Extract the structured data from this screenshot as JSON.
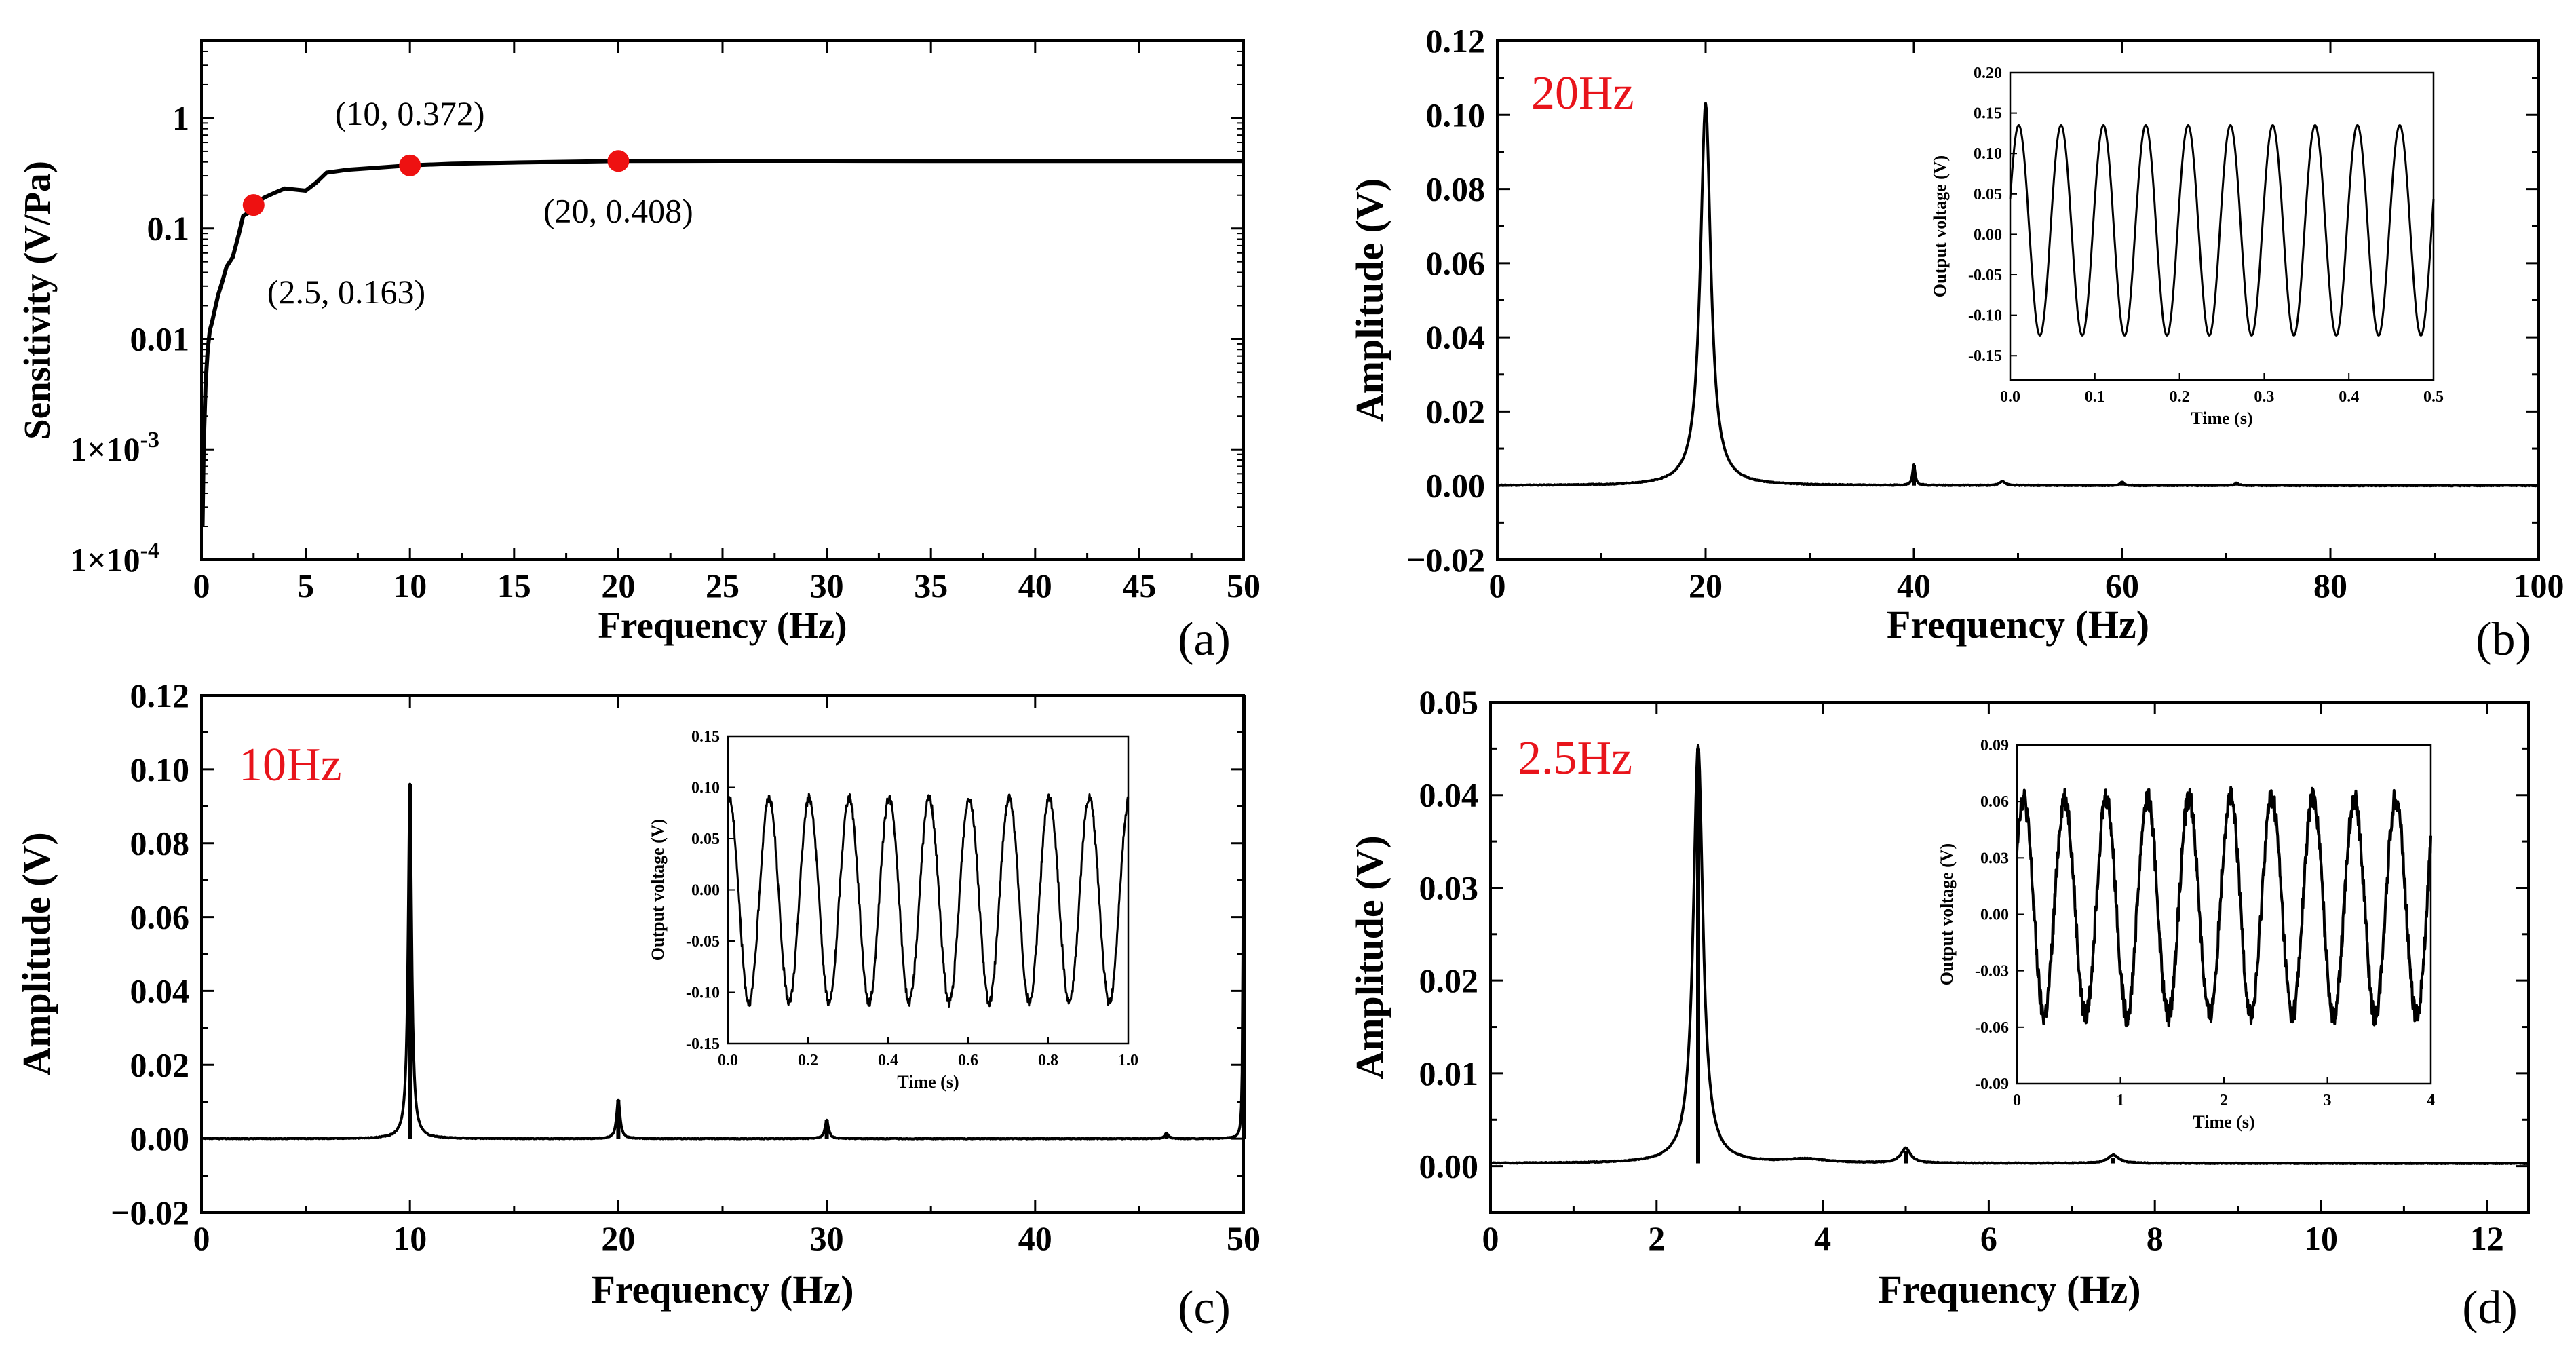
{
  "colors": {
    "line": "#000000",
    "highlight": "#e8141b",
    "marker": "#ee1111"
  },
  "chart_data": [
    {
      "id": "a",
      "type": "line",
      "panel_label": "(a)",
      "xlabel": "Frequency (Hz)",
      "ylabel": "Sensitivity (V/Pa)",
      "xlim": [
        0,
        50
      ],
      "ylim_log10": [
        -4,
        0.7
      ],
      "yscale": "log",
      "xticks": [
        0,
        5,
        10,
        15,
        20,
        25,
        30,
        35,
        40,
        45,
        50
      ],
      "xtick_labels": [
        "0",
        "5",
        "10",
        "15",
        "20",
        "25",
        "30",
        "35",
        "40",
        "45",
        "50"
      ],
      "yticks_log10": [
        -4,
        -3,
        -2,
        -1,
        0
      ],
      "ytick_labels": [
        "1×10",
        "1×10",
        "0.01",
        "0.1",
        "1"
      ],
      "ytick_sup": [
        "-4",
        "-3",
        "",
        "",
        ""
      ],
      "series": [
        {
          "name": "sensitivity",
          "x": [
            0.05,
            0.1,
            0.15,
            0.2,
            0.3,
            0.4,
            0.5,
            0.6,
            0.8,
            1.0,
            1.2,
            1.5,
            1.8,
            2.0,
            2.3,
            2.5,
            3.0,
            3.5,
            4.0,
            5.0,
            5.5,
            6.0,
            7.0,
            8.0,
            10.0,
            12.0,
            15.0,
            20.0,
            25.0,
            30.0,
            35.0,
            40.0,
            45.0,
            50.0
          ],
          "y": [
            0.0002,
            0.001,
            0.002,
            0.004,
            0.008,
            0.012,
            0.014,
            0.017,
            0.025,
            0.033,
            0.045,
            0.055,
            0.09,
            0.13,
            0.14,
            0.163,
            0.19,
            0.21,
            0.23,
            0.22,
            0.26,
            0.32,
            0.34,
            0.35,
            0.372,
            0.385,
            0.395,
            0.408,
            0.41,
            0.41,
            0.408,
            0.408,
            0.408,
            0.408
          ]
        }
      ],
      "markers": [
        {
          "x": 2.5,
          "y": 0.163,
          "label": "(2.5, 0.163)"
        },
        {
          "x": 10,
          "y": 0.372,
          "label": "(10, 0.372)"
        },
        {
          "x": 20,
          "y": 0.408,
          "label": "(20, 0.408)"
        }
      ]
    },
    {
      "id": "b",
      "type": "line",
      "panel_label": "(b)",
      "freq_label": "20Hz",
      "xlabel": "Frequency (Hz)",
      "ylabel": "Amplitude (V)",
      "xlim": [
        0,
        100
      ],
      "ylim": [
        -0.02,
        0.12
      ],
      "xticks": [
        0,
        20,
        40,
        60,
        80,
        100
      ],
      "xtick_labels": [
        "0",
        "20",
        "40",
        "60",
        "80",
        "100"
      ],
      "yticks": [
        -0.02,
        0.0,
        0.02,
        0.04,
        0.06,
        0.08,
        0.1,
        0.12
      ],
      "ytick_labels": [
        "−0.02",
        "0.00",
        "0.02",
        "0.04",
        "0.06",
        "0.08",
        "0.10",
        "0.12"
      ],
      "baseline": 0.0,
      "peaks": [
        {
          "x": 20,
          "y": 0.103,
          "width": 0.6
        },
        {
          "x": 40,
          "y": 0.0055,
          "width": 0.15
        },
        {
          "x": 48.5,
          "y": 0.0012,
          "width": 0.3
        },
        {
          "x": 60,
          "y": 0.001,
          "width": 0.2
        },
        {
          "x": 71,
          "y": 0.0008,
          "width": 0.2
        }
      ],
      "inset": {
        "xlabel": "Time (s)",
        "ylabel": "Output voltage (V)",
        "xlim": [
          0,
          0.5
        ],
        "ylim": [
          -0.18,
          0.2
        ],
        "xticks": [
          0,
          0.1,
          0.2,
          0.3,
          0.4,
          0.5
        ],
        "xtick_labels": [
          "0.0",
          "0.1",
          "0.2",
          "0.3",
          "0.4",
          "0.5"
        ],
        "yticks": [
          -0.15,
          -0.1,
          -0.05,
          0.0,
          0.05,
          0.1,
          0.15,
          0.2
        ],
        "ytick_labels": [
          "-0.15",
          "-0.10",
          "-0.05",
          "0.00",
          "0.05",
          "0.10",
          "0.15",
          "0.20"
        ],
        "frequency": 20,
        "amplitude": 0.13,
        "offset": 0.005,
        "phase": 0.3,
        "noise": 0.0
      }
    },
    {
      "id": "c",
      "type": "line",
      "panel_label": "(c)",
      "freq_label": "10Hz",
      "xlabel": "Frequency (Hz)",
      "ylabel": "Amplitude (V)",
      "xlim": [
        0,
        50
      ],
      "ylim": [
        -0.02,
        0.12
      ],
      "xticks": [
        0,
        10,
        20,
        30,
        40,
        50
      ],
      "xtick_labels": [
        "0",
        "10",
        "20",
        "30",
        "40",
        "50"
      ],
      "yticks": [
        -0.02,
        0.0,
        0.02,
        0.04,
        0.06,
        0.08,
        0.1,
        0.12
      ],
      "ytick_labels": [
        "−0.02",
        "0.00",
        "0.02",
        "0.04",
        "0.06",
        "0.08",
        "0.10",
        "0.12"
      ],
      "baseline": 0.0,
      "peaks": [
        {
          "x": 10,
          "y": 0.096,
          "width": 0.1
        },
        {
          "x": 20,
          "y": 0.0105,
          "width": 0.1
        },
        {
          "x": 30,
          "y": 0.005,
          "width": 0.1
        },
        {
          "x": 46.3,
          "y": 0.0015,
          "width": 0.1
        },
        {
          "x": 50,
          "y": 0.12,
          "width": 0.03
        }
      ],
      "inset": {
        "xlabel": "Time (s)",
        "ylabel": "Output voltage (V)",
        "xlim": [
          0,
          1.0
        ],
        "ylim": [
          -0.15,
          0.15
        ],
        "xticks": [
          0,
          0.2,
          0.4,
          0.6,
          0.8,
          1.0
        ],
        "xtick_labels": [
          "0.0",
          "0.2",
          "0.4",
          "0.6",
          "0.8",
          "1.0"
        ],
        "yticks": [
          -0.15,
          -0.1,
          -0.05,
          0.0,
          0.05,
          0.1,
          0.15
        ],
        "ytick_labels": [
          "-0.15",
          "-0.10",
          "-0.05",
          "0.00",
          "0.05",
          "0.10",
          "0.15"
        ],
        "frequency": 10,
        "amplitude": 0.1,
        "offset": -0.01,
        "phase": 1.4,
        "noise": 0.004
      }
    },
    {
      "id": "d",
      "type": "line",
      "panel_label": "(d)",
      "freq_label": "2.5Hz",
      "xlabel": "Frequency (Hz)",
      "ylabel": "Amplitude (V)",
      "xlim": [
        0,
        12.5
      ],
      "ylim": [
        -0.005,
        0.05
      ],
      "xticks": [
        0,
        2,
        4,
        6,
        8,
        10,
        12
      ],
      "xtick_labels": [
        "0",
        "2",
        "4",
        "6",
        "8",
        "10",
        "12"
      ],
      "yticks": [
        0.0,
        0.01,
        0.02,
        0.03,
        0.04,
        0.05
      ],
      "ytick_labels": [
        "0.00",
        "0.01",
        "0.02",
        "0.03",
        "0.04",
        "0.05"
      ],
      "baseline": 0.0003,
      "peaks": [
        {
          "x": 2.5,
          "y": 0.045,
          "width": 0.07
        },
        {
          "x": 5.0,
          "y": 0.0016,
          "width": 0.07
        },
        {
          "x": 7.5,
          "y": 0.0009,
          "width": 0.08
        },
        {
          "x": 3.8,
          "y": 0.0004,
          "width": 0.3
        }
      ],
      "inset": {
        "xlabel": "Time (s)",
        "ylabel": "Output voltage (V)",
        "xlim": [
          0,
          4
        ],
        "ylim": [
          -0.09,
          0.09
        ],
        "xticks": [
          0,
          1,
          2,
          3,
          4
        ],
        "xtick_labels": [
          "0",
          "1",
          "2",
          "3",
          "4"
        ],
        "yticks": [
          -0.09,
          -0.06,
          -0.03,
          0.0,
          0.03,
          0.06,
          0.09
        ],
        "ytick_labels": [
          "-0.09",
          "-0.06",
          "-0.03",
          "0.00",
          "0.03",
          "0.06",
          "0.09"
        ],
        "frequency": 2.5,
        "amplitude": 0.058,
        "offset": 0.004,
        "phase": 0.6,
        "noise": 0.006
      }
    }
  ]
}
